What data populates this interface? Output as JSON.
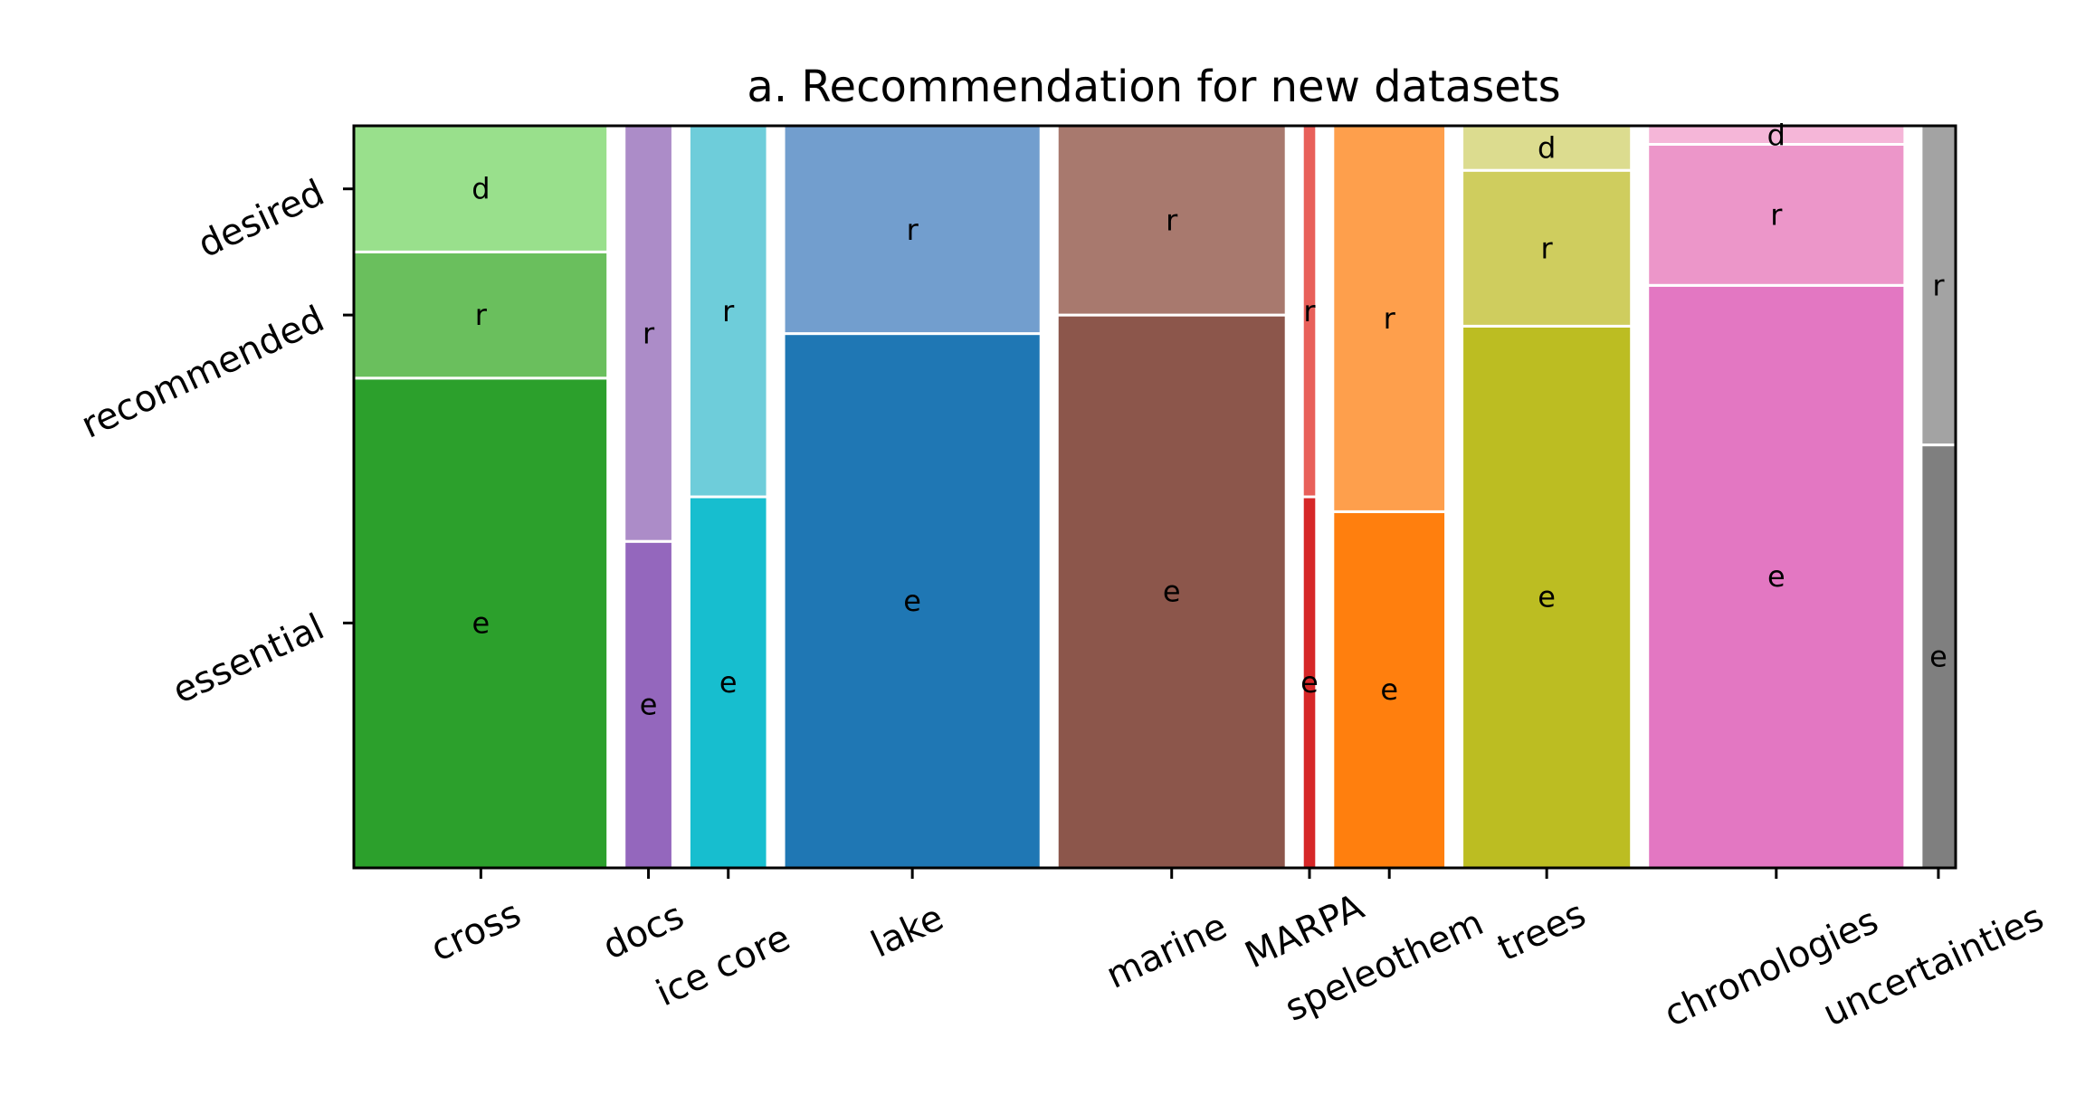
{
  "chart_data": {
    "type": "mosaic",
    "title": "a. Recommendation for new datasets",
    "xlabel": "",
    "ylabel": "",
    "y_ticks": [
      "essential",
      "recommended",
      "desired"
    ],
    "segment_labels": {
      "e": "e",
      "r": "r",
      "d": "d"
    },
    "categories": [
      {
        "name": "cross",
        "width": 0.162,
        "e": 0.66,
        "r": 0.17,
        "d": 0.17,
        "color": "#2ca02c",
        "colors": [
          "#2ca02c",
          "#6abf5d",
          "#99e08c"
        ]
      },
      {
        "name": "docs",
        "width": 0.031,
        "e": 0.44,
        "r": 0.56,
        "d": 0,
        "color": "#9467bd",
        "colors": [
          "#9467bd",
          "#ac8cc8",
          "#c4b0d9"
        ]
      },
      {
        "name": "ice core",
        "width": 0.05,
        "e": 0.5,
        "r": 0.5,
        "d": 0,
        "color": "#17becf",
        "colors": [
          "#17becf",
          "#6ecdda",
          "#a8e4ec"
        ]
      },
      {
        "name": "lake",
        "width": 0.164,
        "e": 0.72,
        "r": 0.28,
        "d": 0,
        "color": "#1f77b4",
        "colors": [
          "#1f77b4",
          "#729ece",
          "#aec7e8"
        ]
      },
      {
        "name": "marine",
        "width": 0.146,
        "e": 0.745,
        "r": 0.255,
        "d": 0,
        "color": "#8c564b",
        "colors": [
          "#8c564b",
          "#a8796e",
          "#c49c94"
        ]
      },
      {
        "name": "MARPA",
        "width": 0.009,
        "e": 0.5,
        "r": 0.5,
        "d": 0,
        "color": "#d62728",
        "colors": [
          "#d62728",
          "#e8605a",
          "#ff9896"
        ]
      },
      {
        "name": "speleothem",
        "width": 0.072,
        "e": 0.48,
        "r": 0.52,
        "d": 0,
        "color": "#ff7f0e",
        "colors": [
          "#ff7f0e",
          "#fe9f4c",
          "#ffbb78"
        ]
      },
      {
        "name": "trees",
        "width": 0.108,
        "e": 0.73,
        "r": 0.21,
        "d": 0.06,
        "color": "#bcbd22",
        "colors": [
          "#bcbd22",
          "#cfcd5e",
          "#dcdc8f"
        ]
      },
      {
        "name": "chronologies",
        "width": 0.164,
        "e": 0.785,
        "r": 0.19,
        "d": 0.025,
        "color": "#e377c2",
        "colors": [
          "#e377c2",
          "#ec96c9",
          "#f5b6d8"
        ]
      },
      {
        "name": "uncertainties",
        "width": 0.022,
        "e": 0.57,
        "r": 0.43,
        "d": 0,
        "color": "#7f7f7f",
        "colors": [
          "#7f7f7f",
          "#a3a3a3",
          "#c7c7c7"
        ]
      }
    ]
  }
}
